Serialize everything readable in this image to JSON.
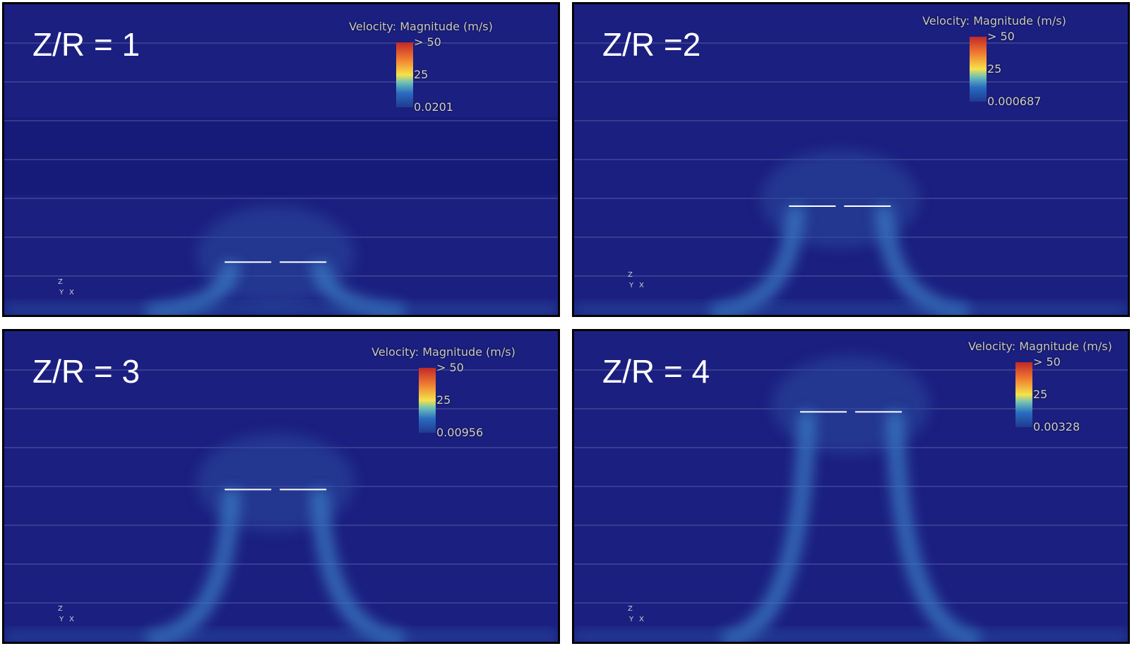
{
  "panels": [
    {
      "title": "Z/R = 1",
      "legend": {
        "title": "Velocity: Magnitude (m/s)",
        "max": "> 50",
        "mid": "25",
        "min": "0.0201"
      },
      "axes": [
        "Z",
        "Y",
        "X"
      ]
    },
    {
      "title": "Z/R =2",
      "legend": {
        "title": "Velocity: Magnitude (m/s)",
        "max": "> 50",
        "mid": "25",
        "min": "0.000687"
      },
      "axes": [
        "Z",
        "Y",
        "X"
      ]
    },
    {
      "title": "Z/R = 3",
      "legend": {
        "title": "Velocity: Magnitude (m/s)",
        "max": "> 50",
        "mid": "25",
        "min": "0.00956"
      },
      "axes": [
        "Z",
        "Y",
        "X"
      ]
    },
    {
      "title": "Z/R = 4",
      "legend": {
        "title": "Velocity: Magnitude (m/s)",
        "max": "> 50",
        "mid": "25",
        "min": "0.00328"
      },
      "axes": [
        "Z",
        "Y",
        "X"
      ]
    }
  ]
}
